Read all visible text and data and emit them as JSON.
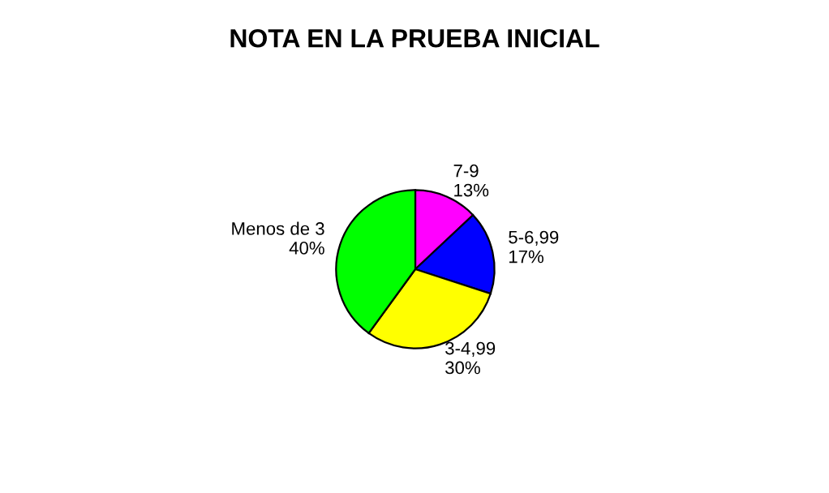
{
  "chart_data": {
    "type": "pie",
    "title": "NOTA EN LA PRUEBA INICIAL",
    "categories": [
      "7-9",
      "5-6,99",
      "3-4,99",
      "Menos de 3"
    ],
    "values": [
      13,
      17,
      30,
      40
    ],
    "value_labels": [
      "13%",
      "17%",
      "30%",
      "40%"
    ],
    "colors": [
      "#ff00ff",
      "#0000ff",
      "#ffff00",
      "#00ff00"
    ]
  }
}
